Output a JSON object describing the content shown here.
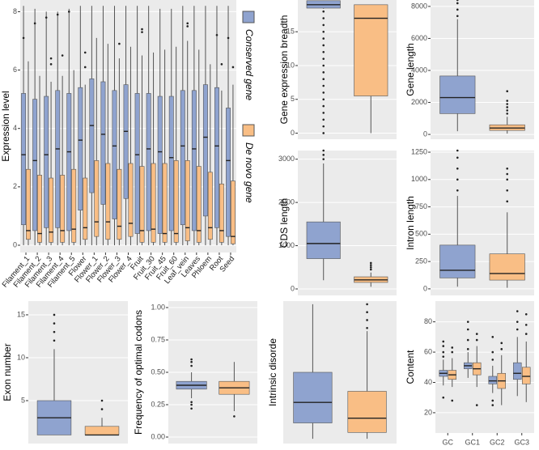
{
  "chart_data": [
    {
      "type": "box",
      "ylabel": "Expression level",
      "ylim": [
        -0.25,
        8.4
      ],
      "yticks": [
        0,
        2,
        4,
        6,
        8
      ],
      "grid": true,
      "legend": "right",
      "categories": [
        "Filament_1",
        "Filament_2",
        "Filament_3",
        "Filament_4",
        "Filament_5",
        "Flower",
        "Flower_1",
        "Flower_2",
        "Flower_3",
        "Flower_4",
        "Fruit",
        "Fruit_30",
        "Fruit_45",
        "Fruit_60",
        "Leaf_vein",
        "Leaves",
        "Phloem",
        "Root",
        "Seed"
      ],
      "series": [
        {
          "name": "Conserved gene",
          "color": "#8fa3cf",
          "values": [
            [
              0,
              0.7,
              3.1,
              5.2,
              8.2
            ],
            [
              0,
              0.5,
              2.9,
              5.0,
              8.1
            ],
            [
              0,
              0.6,
              3.1,
              5.1,
              8.0
            ],
            [
              0,
              0.6,
              3.3,
              5.3,
              8.0
            ],
            [
              0,
              0.5,
              3.2,
              5.2,
              8.1
            ],
            [
              0,
              1.2,
              3.6,
              5.4,
              8.2
            ],
            [
              0,
              1.8,
              4.1,
              5.7,
              8.2
            ],
            [
              0,
              1.4,
              3.8,
              5.6,
              8.2
            ],
            [
              0,
              0.9,
              3.4,
              5.3,
              8.2
            ],
            [
              0,
              1.6,
              3.9,
              5.5,
              8.2
            ],
            [
              0,
              0.4,
              3.1,
              5.2,
              8.2
            ],
            [
              0,
              0.5,
              3.3,
              5.2,
              8.2
            ],
            [
              0,
              0.4,
              3.2,
              5.1,
              8.1
            ],
            [
              0,
              0.5,
              3.0,
              5.1,
              8.1
            ],
            [
              0,
              0.7,
              3.4,
              5.3,
              8.2
            ],
            [
              0,
              0.5,
              3.3,
              5.3,
              8.2
            ],
            [
              0,
              1.0,
              3.7,
              5.5,
              8.2
            ],
            [
              0,
              0.6,
              3.4,
              5.4,
              8.2
            ],
            [
              0,
              0.3,
              2.9,
              4.7,
              8.2
            ]
          ],
          "outliers": [
            [
              7.1
            ],
            [
              7.6
            ],
            [
              7.8
            ],
            [
              7.9
            ],
            [
              8.0
            ],
            [],
            [],
            [],
            [],
            [],
            [],
            [],
            [],
            [],
            [],
            [],
            [],
            [
              7.2
            ],
            [
              7.1
            ]
          ]
        },
        {
          "name": "De novo gene",
          "color": "#f9be85",
          "values": [
            [
              0,
              0.2,
              0.5,
              2.6,
              6.3
            ],
            [
              0,
              0.1,
              0.4,
              2.4,
              5.8
            ],
            [
              0,
              0.1,
              0.45,
              2.3,
              5.6
            ],
            [
              0,
              0.1,
              0.5,
              2.4,
              5.8
            ],
            [
              0,
              0.1,
              0.55,
              2.6,
              6.0
            ],
            [
              0,
              0.2,
              0.6,
              2.3,
              5.5
            ],
            [
              0,
              0.3,
              0.8,
              2.9,
              7.1
            ],
            [
              0,
              0.2,
              0.8,
              2.8,
              6.9
            ],
            [
              0,
              0.2,
              0.65,
              2.6,
              6.4
            ],
            [
              0,
              0.3,
              0.75,
              2.8,
              6.8
            ],
            [
              0,
              0.1,
              0.5,
              2.7,
              6.5
            ],
            [
              0,
              0.1,
              0.55,
              2.8,
              6.6
            ],
            [
              0,
              0.1,
              0.4,
              2.8,
              6.7
            ],
            [
              0,
              0.1,
              0.4,
              2.9,
              6.8
            ],
            [
              0,
              0.15,
              0.6,
              2.9,
              7.0
            ],
            [
              0,
              0.1,
              0.5,
              2.7,
              6.7
            ],
            [
              0,
              0.2,
              0.6,
              2.5,
              6.2
            ],
            [
              0,
              0.1,
              0.5,
              2.1,
              5.3
            ],
            [
              0,
              0.05,
              0.3,
              2.2,
              5.5
            ]
          ],
          "outliers": [
            [],
            [],
            [
              6.2,
              6.4
            ],
            [
              6.5
            ],
            [],
            [
              6.1,
              6.6
            ],
            [],
            [],
            [
              6.9
            ],
            [],
            [
              7.3,
              7.4
            ],
            [],
            [],
            [],
            [
              7.5,
              7.6
            ],
            [],
            [],
            [
              6.2
            ],
            [
              6.1
            ]
          ]
        }
      ]
    },
    {
      "type": "box",
      "ylabel": "Gene expression breadth",
      "ylim": [
        -0.9,
        19.7
      ],
      "yticks": [
        0,
        5,
        10,
        15
      ],
      "grid": true,
      "series": [
        {
          "color": "#8fa3cf",
          "values": [
            [
              18.4,
              18.5,
              19.0,
              19.6,
              19.6
            ]
          ],
          "outliers": [
            [
              0,
              1,
              2,
              3,
              4,
              5,
              6,
              7,
              8,
              9,
              10,
              11,
              12,
              13,
              14,
              15,
              16,
              17,
              18
            ]
          ]
        },
        {
          "color": "#f9be85",
          "values": [
            [
              0,
              5.5,
              17,
              19,
              19
            ]
          ],
          "outliers": [
            []
          ]
        }
      ]
    },
    {
      "type": "box",
      "ylabel": "Gene length",
      "ylim": [
        -300,
        8400
      ],
      "yticks": [
        0,
        2000,
        4000,
        6000,
        8000
      ],
      "grid": true,
      "series": [
        {
          "color": "#8fa3cf",
          "values": [
            [
              200,
              1300,
              2300,
              3650,
              7200
            ]
          ],
          "outliers": [
            [
              7400,
              7800,
              8200,
              8400
            ]
          ]
        },
        {
          "color": "#f9be85",
          "values": [
            [
              50,
              250,
              400,
              600,
              1100
            ]
          ],
          "outliers": [
            [
              1300,
              1500,
              1700,
              1900,
              2100,
              2700
            ]
          ]
        }
      ]
    },
    {
      "type": "box",
      "ylabel": "CDS length",
      "ylim": [
        -150,
        3200
      ],
      "yticks": [
        0,
        1000,
        2000,
        3000
      ],
      "grid": true,
      "series": [
        {
          "color": "#8fa3cf",
          "values": [
            [
              200,
              700,
              1050,
              1550,
              2900
            ]
          ],
          "outliers": [
            [
              3000,
              3100,
              3200
            ]
          ]
        },
        {
          "color": "#f9be85",
          "values": [
            [
              50,
              150,
              210,
              280,
              380
            ]
          ],
          "outliers": [
            [
              450,
              500,
              550,
              600
            ]
          ]
        }
      ]
    },
    {
      "type": "box",
      "ylabel": "Intron length",
      "ylim": [
        -60,
        1265
      ],
      "yticks": [
        0,
        250,
        500,
        750,
        1000,
        1250
      ],
      "grid": true,
      "series": [
        {
          "color": "#8fa3cf",
          "values": [
            [
              20,
              100,
              170,
              400,
              850
            ]
          ],
          "outliers": [
            [
              900,
              1000,
              1100,
              1200,
              1265
            ]
          ]
        },
        {
          "color": "#f9be85",
          "values": [
            [
              10,
              80,
              140,
              320,
              700
            ]
          ],
          "outliers": [
            [
              800,
              900,
              1000,
              1050,
              1100
            ]
          ]
        }
      ]
    },
    {
      "type": "box",
      "ylabel": "Exon number",
      "ylim": [
        0,
        16.6
      ],
      "yticks": [
        5,
        10,
        15
      ],
      "grid": true,
      "series": [
        {
          "color": "#8fa3cf",
          "values": [
            [
              1,
              1,
              3,
              5,
              11
            ]
          ],
          "outliers": [
            [
              12,
              13,
              14,
              15
            ]
          ]
        },
        {
          "color": "#f9be85",
          "values": [
            [
              1,
              1,
              1,
              2,
              3
            ]
          ],
          "outliers": [
            [
              4,
              5
            ]
          ]
        }
      ]
    },
    {
      "type": "box",
      "ylabel": "Frequency of optimal codons",
      "ylim": [
        -0.05,
        1.05
      ],
      "yticks": [
        {
          "value": 0,
          "label": "0.00"
        },
        {
          "value": 0.25,
          "label": "0.25"
        },
        {
          "value": 0.5,
          "label": "0.50"
        },
        {
          "value": 0.75,
          "label": "0.75"
        },
        {
          "value": 1,
          "label": "1.00"
        }
      ],
      "grid": true,
      "series": [
        {
          "color": "#8fa3cf",
          "values": [
            [
              0.3,
              0.37,
              0.4,
              0.43,
              0.5
            ]
          ],
          "outliers": [
            [
              0.22,
              0.25,
              0.27,
              0.55,
              0.58,
              0.6
            ]
          ]
        },
        {
          "color": "#f9be85",
          "values": [
            [
              0.2,
              0.33,
              0.38,
              0.43,
              0.58
            ]
          ],
          "outliers": [
            [
              0.16
            ]
          ]
        }
      ]
    },
    {
      "type": "box",
      "ylabel": "Intrinsic disorde",
      "ylim": [
        -0.03,
        0.87
      ],
      "grid": true,
      "series": [
        {
          "color": "#8fa3cf",
          "values": [
            [
              0,
              0.1,
              0.23,
              0.42,
              0.85
            ]
          ],
          "outliers": [
            []
          ]
        },
        {
          "color": "#f9be85",
          "values": [
            [
              0,
              0.04,
              0.13,
              0.3,
              0.68
            ]
          ],
          "outliers": [
            [
              0.7,
              0.75,
              0.8,
              0.85
            ]
          ]
        }
      ]
    },
    {
      "type": "box",
      "ylabel": "Content",
      "ylim": [
        6.6,
        93.7
      ],
      "yticks": [
        20,
        40,
        60,
        80
      ],
      "grid": true,
      "categories": [
        "GC",
        "GC1",
        "GC2",
        "GC3"
      ],
      "series": [
        {
          "color": "#8fa3cf",
          "values": [
            [
              38,
              44,
              46,
              48,
              55
            ],
            [
              43,
              49,
              51,
              53,
              60
            ],
            [
              33,
              39,
              41,
              44,
              51
            ],
            [
              31,
              42,
              46,
              53,
              70
            ]
          ],
          "outliers": [
            [
              30,
              57,
              60,
              64,
              67
            ],
            [
              62,
              68,
              75,
              80
            ],
            [
              25,
              28,
              55,
              60,
              70
            ],
            [
              75,
              80,
              87
            ]
          ]
        },
        {
          "color": "#f9be85",
          "values": [
            [
              37,
              42,
              45,
              48,
              56
            ],
            [
              37,
              45,
              49,
              53,
              64
            ],
            [
              25,
              36,
              41,
              46,
              58
            ],
            [
              27,
              39,
              44,
              50,
              67
            ]
          ],
          "outliers": [
            [
              28,
              60,
              63
            ],
            [
              25,
              68,
              72
            ],
            [
              62,
              66
            ],
            [
              72,
              78,
              85
            ]
          ]
        }
      ]
    }
  ]
}
